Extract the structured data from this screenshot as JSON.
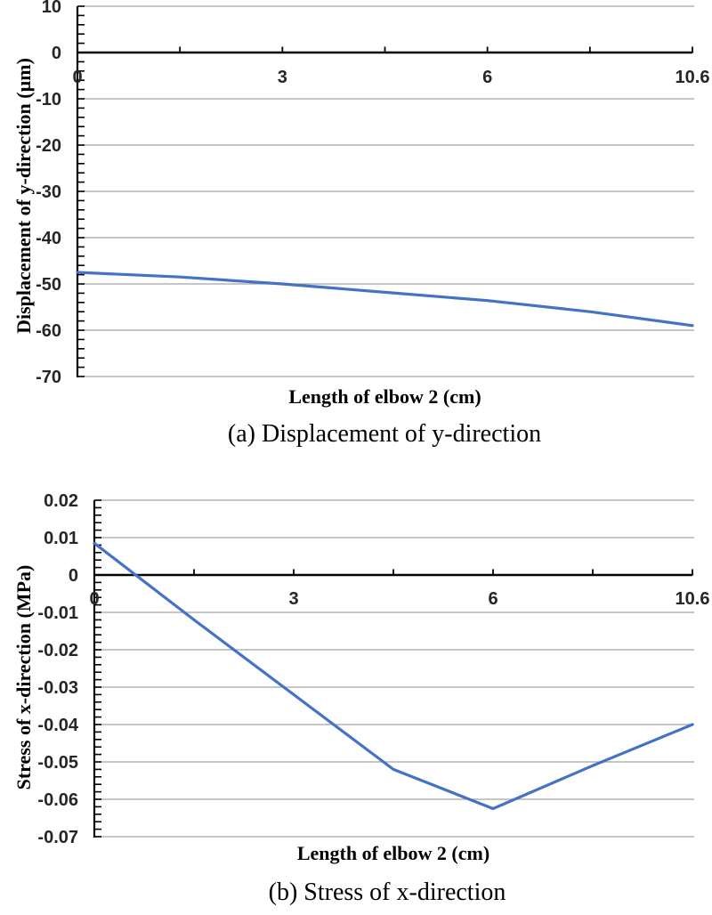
{
  "page": {
    "background": "#ffffff"
  },
  "chart_data": [
    {
      "panel": "a",
      "type": "line",
      "caption": "(a) Displacement of y-direction",
      "xlabel": "Length of elbow 2 (cm)",
      "ylabel": "Displacement of y-direction (µm)",
      "x_tick_labels": [
        "0",
        "3",
        "6",
        "10.6"
      ],
      "labeled_point_indices": [
        0,
        2,
        4,
        6
      ],
      "num_points": 7,
      "values": [
        -47.5,
        -48.5,
        -50,
        -51.8,
        -53.6,
        -56,
        -59
      ],
      "ylim": [
        -70,
        10
      ],
      "y_major_step": 10,
      "y_minor_divisions": 5,
      "y_tick_labels": [
        "10",
        "0",
        "-10",
        "-20",
        "-30",
        "-40",
        "-50",
        "-60",
        "-70"
      ],
      "grid": true,
      "legend": "none",
      "line_color": "#4472C4",
      "grid_color": "#A3A3A3",
      "axis_color": "#000000",
      "tick_label_color": "#262626"
    },
    {
      "panel": "b",
      "type": "line",
      "caption": "(b) Stress of x-direction",
      "xlabel": "Length of elbow 2 (cm)",
      "ylabel": "Stress of x-direction (MPa)",
      "x_tick_labels": [
        "0",
        "3",
        "6",
        "10.6"
      ],
      "labeled_point_indices": [
        0,
        2,
        4,
        6
      ],
      "num_points": 7,
      "values": [
        0.0085,
        -0.012,
        -0.032,
        -0.052,
        -0.0625,
        -0.051,
        -0.04
      ],
      "ylim": [
        -0.07,
        0.02
      ],
      "y_major_step": 0.01,
      "y_minor_divisions": 5,
      "y_tick_labels": [
        "0.02",
        "0.01",
        "0",
        "-0.01",
        "-0.02",
        "-0.03",
        "-0.04",
        "-0.05",
        "-0.06",
        "-0.07"
      ],
      "grid": true,
      "legend": "none",
      "line_color": "#4472C4",
      "grid_color": "#A3A3A3",
      "axis_color": "#000000",
      "tick_label_color": "#262626"
    }
  ]
}
